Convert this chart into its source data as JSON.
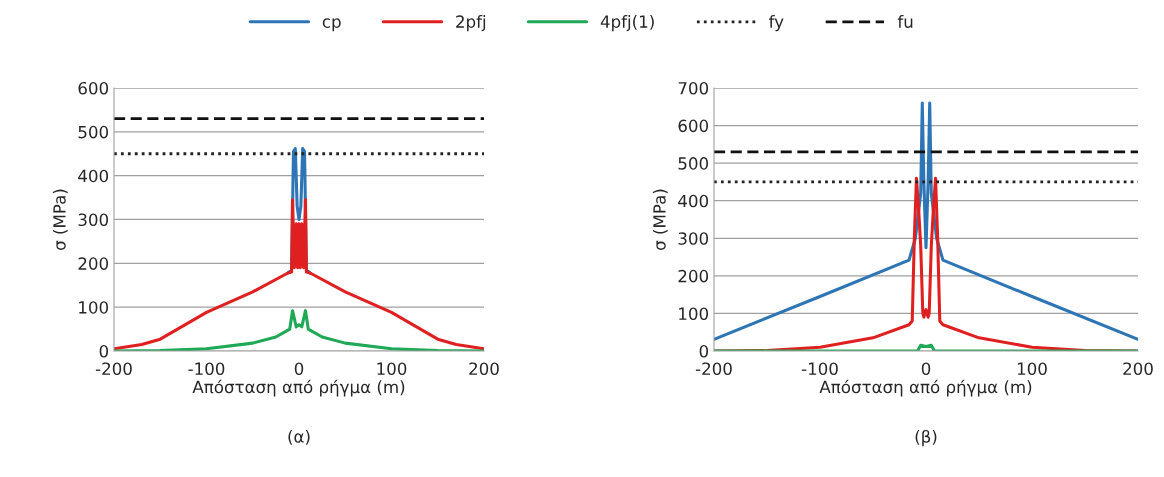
{
  "chart_data": [
    {
      "type": "line",
      "xlabel": "Απόσταση από ρήγμα (m)",
      "ylabel": "σ (MPa)",
      "xlim": [
        -200,
        200
      ],
      "xticks": [
        -200,
        -100,
        0,
        100,
        200
      ],
      "ylim": [
        0,
        600
      ],
      "yticks": [
        0,
        100,
        200,
        300,
        400,
        500,
        600
      ],
      "grid": "y",
      "legend": "top",
      "marker": "none",
      "annotations": [
        "(α)"
      ],
      "series": [
        {
          "name": "cp",
          "color": "#2e75b6",
          "line_style": "solid",
          "x": [
            -12,
            -8,
            -6,
            -4,
            -2,
            0,
            2,
            4,
            6,
            8,
            12
          ],
          "values": [
            178,
            185,
            455,
            462,
            330,
            300,
            330,
            462,
            455,
            185,
            178
          ]
        },
        {
          "name": "2pfj",
          "color": "#e02020",
          "line_style": "solid",
          "x": [
            -200,
            -170,
            -150,
            -100,
            -50,
            -12,
            -8,
            -7,
            -5,
            -3,
            -1.5,
            0,
            1.5,
            3,
            5,
            7,
            8,
            12,
            50,
            100,
            150,
            170,
            200
          ],
          "values": [
            5,
            15,
            27,
            88,
            135,
            178,
            180,
            345,
            190,
            290,
            190,
            290,
            190,
            290,
            190,
            345,
            180,
            178,
            135,
            88,
            27,
            15,
            5
          ]
        },
        {
          "name": "4pfj(1)",
          "color": "#1fa855",
          "line_style": "solid",
          "x": [
            -200,
            -150,
            -100,
            -50,
            -25,
            -10,
            -7,
            -3,
            0,
            3,
            7,
            10,
            25,
            50,
            100,
            150,
            200
          ],
          "values": [
            0,
            1,
            5,
            18,
            32,
            50,
            92,
            55,
            60,
            55,
            92,
            50,
            32,
            18,
            5,
            1,
            0
          ]
        },
        {
          "name": "fy",
          "color": "#222222",
          "line_style": "dotted",
          "x": [
            -200,
            200
          ],
          "values": [
            450,
            450
          ]
        },
        {
          "name": "fu",
          "color": "#111111",
          "line_style": "dashed",
          "x": [
            -200,
            200
          ],
          "values": [
            530,
            530
          ]
        }
      ]
    },
    {
      "type": "line",
      "xlabel": "Απόσταση από ρήγμα (m)",
      "ylabel": "σ (MPa)",
      "xlim": [
        -200,
        200
      ],
      "xticks": [
        -200,
        -100,
        0,
        100,
        200
      ],
      "ylim": [
        0,
        700
      ],
      "yticks": [
        0,
        100,
        200,
        300,
        400,
        500,
        600,
        700
      ],
      "grid": "y",
      "marker": "none",
      "annotations": [
        "(β)"
      ],
      "series": [
        {
          "color": "#2e75b6",
          "line_style": "solid",
          "x": [
            -200,
            -100,
            -16,
            -10,
            -5,
            -3.5,
            -2,
            0,
            2,
            3.5,
            5,
            10,
            16,
            100,
            200
          ],
          "values": [
            31,
            145,
            242,
            300,
            420,
            660,
            450,
            275,
            450,
            660,
            420,
            300,
            242,
            145,
            31
          ]
        },
        {
          "color": "#e02020",
          "line_style": "solid",
          "x": [
            -200,
            -150,
            -100,
            -50,
            -16,
            -13,
            -11,
            -9,
            -7,
            -5,
            -3,
            -2,
            0,
            2,
            3,
            5,
            7,
            9,
            11,
            13,
            16,
            50,
            100,
            150,
            200
          ],
          "values": [
            0,
            1,
            10,
            35,
            70,
            80,
            300,
            460,
            380,
            280,
            100,
            90,
            110,
            90,
            100,
            280,
            380,
            460,
            300,
            80,
            70,
            35,
            10,
            1,
            0
          ]
        },
        {
          "color": "#1fa855",
          "line_style": "solid",
          "x": [
            -200,
            -8,
            -5,
            0,
            5,
            8,
            200
          ],
          "values": [
            0,
            0,
            15,
            12,
            15,
            0,
            0
          ]
        },
        {
          "color": "#222222",
          "line_style": "dotted",
          "x": [
            -200,
            200
          ],
          "values": [
            450,
            450
          ]
        },
        {
          "color": "#111111",
          "line_style": "dashed",
          "x": [
            -200,
            200
          ],
          "values": [
            530,
            530
          ]
        }
      ]
    }
  ]
}
